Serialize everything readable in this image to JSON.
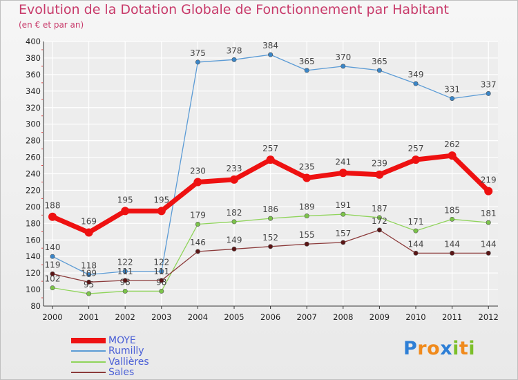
{
  "title": "Evolution de la Dotation Globale de Fonctionnement par Habitant",
  "subtitle": "(en € et par an)",
  "logo": {
    "text": "Proxiti",
    "letters": [
      {
        "ch": "P",
        "color": "#2e7fd6"
      },
      {
        "ch": "r",
        "color": "#f08a1c"
      },
      {
        "ch": "o",
        "color": "#f08a1c"
      },
      {
        "ch": "x",
        "color": "#2e7fd6"
      },
      {
        "ch": "i",
        "color": "#7cbf2a"
      },
      {
        "ch": "t",
        "color": "#f08a1c"
      },
      {
        "ch": "i",
        "color": "#7cbf2a"
      }
    ]
  },
  "colors": {
    "axis": "#333333",
    "grid": "#ffffff",
    "tick_text": "#222222",
    "value_text": "#444444",
    "red_ticks": "#e04040"
  },
  "chart_data": {
    "type": "line",
    "title": "Evolution de la Dotation Globale de Fonctionnement par Habitant",
    "ylabel": "(en € et par an)",
    "xlabel": "",
    "ylim": [
      80,
      400
    ],
    "yticks": [
      80,
      100,
      120,
      140,
      160,
      180,
      200,
      220,
      240,
      260,
      280,
      300,
      320,
      340,
      360,
      380,
      400
    ],
    "categories": [
      "2000",
      "2001",
      "2002",
      "2003",
      "2004",
      "2005",
      "2006",
      "2007",
      "2008",
      "2009",
      "2010",
      "2011",
      "2012"
    ],
    "grid": true,
    "legend_position": "bottom-left",
    "series": [
      {
        "name": "Rumilly",
        "color": "#5b9bd5",
        "marker_color": "#3a86c8",
        "values": [
          140,
          118,
          122,
          122,
          375,
          378,
          384,
          365,
          370,
          365,
          349,
          331,
          337
        ],
        "labels": [
          "140",
          "118",
          "122",
          "122",
          "375",
          "378",
          "384",
          "365",
          "370",
          "365",
          "349",
          "331",
          "337"
        ]
      },
      {
        "name": "Vallières",
        "color": "#8fd45a",
        "marker_color": "#7cc44a",
        "values": [
          102,
          95,
          98,
          98,
          179,
          182,
          186,
          189,
          191,
          187,
          171,
          185,
          181
        ],
        "labels": [
          "102",
          "95",
          "98",
          "98",
          "179",
          "182",
          "186",
          "189",
          "191",
          "187",
          "171",
          "185",
          "181"
        ]
      },
      {
        "name": "Sales",
        "color": "#8b3a3a",
        "marker_color": "#5a1515",
        "values": [
          119,
          109,
          111,
          111,
          146,
          149,
          152,
          155,
          157,
          172,
          144,
          144,
          144
        ],
        "labels": [
          "119",
          "109",
          "111",
          "111",
          "146",
          "149",
          "152",
          "155",
          "157",
          "172",
          "144",
          "144",
          "144"
        ]
      },
      {
        "name": "MOYE",
        "color": "#ee1111",
        "marker_color": "#ee1111",
        "values": [
          188,
          169,
          195,
          195,
          230,
          233,
          257,
          235,
          241,
          239,
          257,
          262,
          219
        ],
        "labels": [
          "188",
          "169",
          "195",
          "195",
          "230",
          "233",
          "257",
          "235",
          "241",
          "239",
          "257",
          "262",
          "219"
        ]
      }
    ]
  },
  "legend": [
    {
      "name": "MOYE",
      "color": "#ee1111",
      "thick": true
    },
    {
      "name": "Rumilly",
      "color": "#5b9bd5",
      "thick": false
    },
    {
      "name": "Vallières",
      "color": "#8fd45a",
      "thick": false
    },
    {
      "name": "Sales",
      "color": "#8b3a3a",
      "thick": false
    }
  ]
}
